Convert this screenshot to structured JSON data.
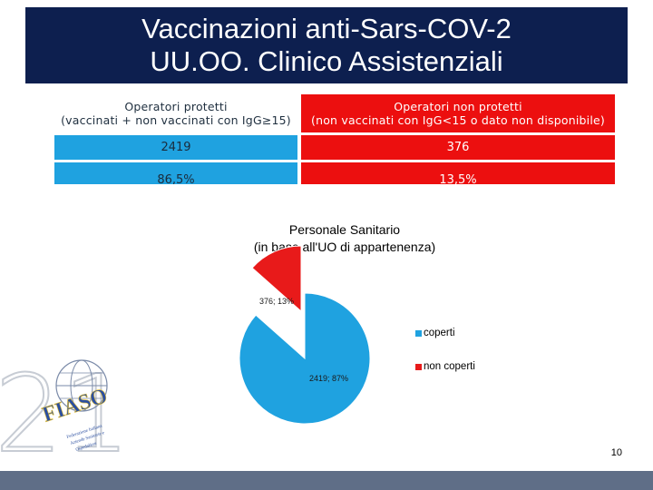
{
  "title": {
    "line1": "Vaccinazioni anti-Sars-COV-2",
    "line2": "UU.OO. Clinico Assistenziali"
  },
  "table": {
    "col1": {
      "header_line1": "Operatori protetti",
      "header_line2": "(vaccinati + non vaccinati con  IgG≥15)",
      "count": "2419",
      "percent": "86,5%"
    },
    "col2": {
      "header_line1": "Operatori non protetti",
      "header_line2": "(non vaccinati con IgG<15 o dato non disponibile)",
      "count": "376",
      "percent": "13,5%"
    }
  },
  "chart_data": {
    "type": "pie",
    "title_line1": "Personale Sanitario",
    "title_line2": "(in base all'UO di appartenenza)",
    "categories": [
      "coperti",
      "non coperti"
    ],
    "values": [
      2419,
      376
    ],
    "data_labels": [
      "2419; 87%",
      "376; 13%"
    ],
    "colors": [
      "#1fa2e0",
      "#e81a1a"
    ],
    "legend_position": "right"
  },
  "logo": {
    "number": "21",
    "text": "FIASO",
    "subtext": "Federazione Italiana Aziende Sanitarie e Ospedaliere"
  },
  "page_number": "10"
}
